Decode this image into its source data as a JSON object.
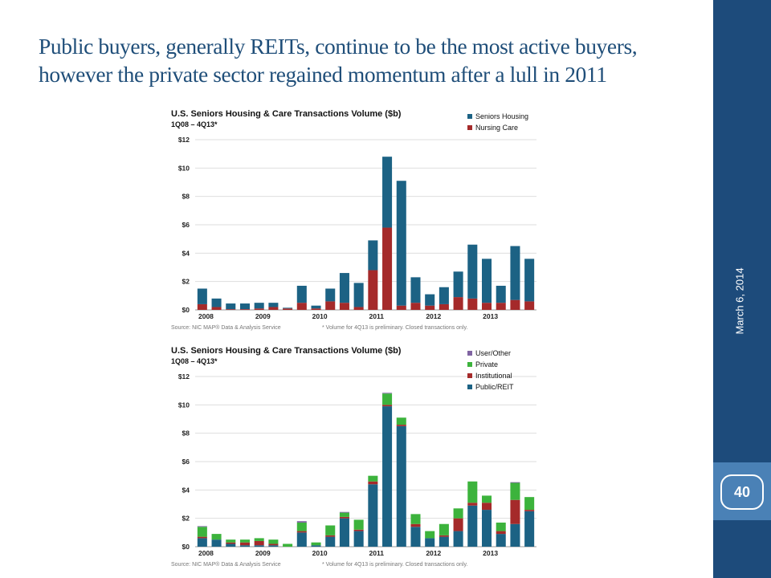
{
  "slide": {
    "title_line1": "Public buyers, generally REITs, continue to be the most active buyers,",
    "title_line2": "however the private sector regained momentum after a lull in 2011",
    "date": "March 6, 2014",
    "page_number": "40",
    "colors": {
      "sidebar": "#1d4b7b",
      "page_box": "#4a81b6",
      "title": "#1f4e79"
    }
  },
  "chart_data": [
    {
      "type": "bar",
      "stacked": true,
      "title": "U.S. Seniors Housing & Care Transactions Volume ($b)",
      "subtitle": "1Q08 – 4Q13*",
      "ylim": [
        0,
        12
      ],
      "yticks": [
        "$0",
        "$2",
        "$4",
        "$6",
        "$8",
        "$10",
        "$12"
      ],
      "xtick_labels": [
        {
          "label": "2008",
          "index": 0
        },
        {
          "label": "2009",
          "index": 4
        },
        {
          "label": "2010",
          "index": 8
        },
        {
          "label": "2011",
          "index": 12
        },
        {
          "label": "2012",
          "index": 16
        },
        {
          "label": "2013",
          "index": 20
        }
      ],
      "grid": true,
      "legend_position": "top-right",
      "source_note": "Source: NIC MAP® Data & Analysis Service",
      "footnote": "* Volume for 4Q13 is preliminary. Closed transactions only.",
      "series": [
        {
          "name": "Nursing Care",
          "color": "#a52a2a",
          "values": [
            0.4,
            0.2,
            0.05,
            0.05,
            0.1,
            0.2,
            0.1,
            0.5,
            0.1,
            0.6,
            0.5,
            0.2,
            2.8,
            5.8,
            0.3,
            0.5,
            0.3,
            0.4,
            0.9,
            0.8,
            0.5,
            0.5,
            0.7,
            0.6
          ]
        },
        {
          "name": "Seniors Housing",
          "color": "#1c6284",
          "values": [
            1.1,
            0.6,
            0.4,
            0.4,
            0.4,
            0.3,
            0.05,
            1.2,
            0.2,
            0.9,
            2.1,
            1.7,
            2.1,
            5.0,
            8.8,
            1.8,
            0.8,
            1.2,
            1.8,
            3.8,
            3.1,
            1.2,
            3.8,
            3.0
          ]
        }
      ]
    },
    {
      "type": "bar",
      "stacked": true,
      "title": "U.S. Seniors Housing & Care Transactions Volume ($b)",
      "subtitle": "1Q08 – 4Q13*",
      "ylim": [
        0,
        12
      ],
      "yticks": [
        "$0",
        "$2",
        "$4",
        "$6",
        "$8",
        "$10",
        "$12"
      ],
      "xtick_labels": [
        {
          "label": "2008",
          "index": 0
        },
        {
          "label": "2009",
          "index": 4
        },
        {
          "label": "2010",
          "index": 8
        },
        {
          "label": "2011",
          "index": 12
        },
        {
          "label": "2012",
          "index": 16
        },
        {
          "label": "2013",
          "index": 20
        }
      ],
      "grid": true,
      "legend_position": "top-right",
      "source_note": "Source: NIC MAP® Data & Analysis Service",
      "footnote": "* Volume for 4Q13 is preliminary. Closed transactions only.",
      "series": [
        {
          "name": "Public/REIT",
          "color": "#1c6284",
          "values": [
            0.6,
            0.5,
            0.2,
            0.1,
            0.1,
            0.1,
            0.0,
            1.0,
            0.1,
            0.7,
            2.0,
            1.1,
            4.4,
            9.9,
            8.5,
            1.4,
            0.6,
            0.7,
            1.1,
            2.9,
            2.6,
            0.9,
            1.6,
            2.5
          ]
        },
        {
          "name": "Institutional",
          "color": "#a52a2a",
          "values": [
            0.1,
            0.0,
            0.1,
            0.2,
            0.3,
            0.1,
            0.0,
            0.1,
            0.0,
            0.1,
            0.1,
            0.1,
            0.2,
            0.1,
            0.1,
            0.2,
            0.0,
            0.1,
            0.9,
            0.2,
            0.5,
            0.2,
            1.7,
            0.1
          ]
        },
        {
          "name": "Private",
          "color": "#3cb33c",
          "values": [
            0.7,
            0.4,
            0.2,
            0.2,
            0.2,
            0.3,
            0.2,
            0.6,
            0.2,
            0.7,
            0.3,
            0.7,
            0.4,
            0.8,
            0.5,
            0.7,
            0.5,
            0.8,
            0.7,
            1.5,
            0.5,
            0.6,
            1.2,
            0.9
          ]
        },
        {
          "name": "User/Other",
          "color": "#8064a2",
          "values": [
            0.05,
            0.0,
            0.0,
            0.0,
            0.0,
            0.0,
            0.0,
            0.1,
            0.0,
            0.0,
            0.05,
            0.0,
            0.0,
            0.05,
            0.0,
            0.0,
            0.0,
            0.0,
            0.0,
            0.0,
            0.0,
            0.0,
            0.05,
            0.0
          ]
        }
      ]
    }
  ]
}
